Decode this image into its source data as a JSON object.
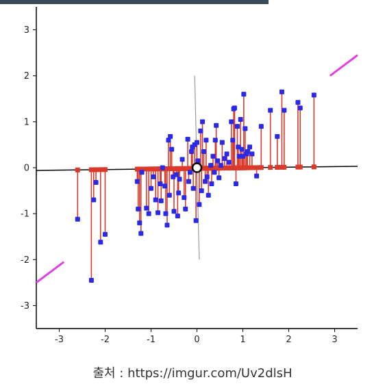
{
  "caption": "출처 : https://imgur.com/Uv2dlsH",
  "colors": {
    "background": "#ffffff",
    "frame": "#000000",
    "axis_line": "#000000",
    "projection_line": "#d93a2b",
    "projected_point": "#d93a2b",
    "data_point": "#2a2ae6",
    "direction_segment": "#e040e0",
    "orthogonal_axis": "#9a9a9a",
    "mean_marker_fill": "#ffffff",
    "mean_marker_stroke": "#000000",
    "top_strip": "#3b4a57"
  },
  "chart_data": {
    "type": "scatter",
    "title": "",
    "xlabel": "",
    "ylabel": "",
    "xlim": [
      -3.5,
      3.5
    ],
    "ylim": [
      -3.5,
      3.5
    ],
    "xticks": [
      -3,
      -2,
      -1,
      0,
      1,
      2,
      3
    ],
    "yticks": [
      -3,
      -2,
      -1,
      0,
      1,
      2,
      3
    ],
    "grid": false,
    "legend": "none",
    "mean_point": [
      0.0,
      0.0
    ],
    "direction_segments": [
      [
        [
          -3.5,
          -2.5
        ],
        [
          -2.9,
          -2.05
        ]
      ],
      [
        [
          2.9,
          2.0
        ],
        [
          3.5,
          2.45
        ]
      ]
    ],
    "orthogonal_axis": [
      [
        -0.05,
        2.0
      ],
      [
        0.05,
        -2.0
      ]
    ],
    "projection_axis": {
      "from": [
        -3.5,
        -0.06
      ],
      "to": [
        3.5,
        0.03
      ]
    },
    "points": [
      [
        -2.6,
        -1.12
      ],
      [
        -2.3,
        -2.45
      ],
      [
        -2.25,
        -0.7
      ],
      [
        -2.2,
        -0.32
      ],
      [
        -2.1,
        -1.62
      ],
      [
        -2.0,
        -1.45
      ],
      [
        -1.3,
        -0.3
      ],
      [
        -1.28,
        -0.9
      ],
      [
        -1.25,
        -1.2
      ],
      [
        -1.22,
        -1.43
      ],
      [
        -1.2,
        -0.1
      ],
      [
        -1.1,
        -0.88
      ],
      [
        -1.05,
        -1.0
      ],
      [
        -1.0,
        -0.45
      ],
      [
        -0.95,
        -0.2
      ],
      [
        -0.9,
        -0.7
      ],
      [
        -0.85,
        -0.98
      ],
      [
        -0.8,
        -0.35
      ],
      [
        -0.78,
        -0.72
      ],
      [
        -0.75,
        0.0
      ],
      [
        -0.7,
        -0.4
      ],
      [
        -0.68,
        -1.0
      ],
      [
        -0.65,
        -1.25
      ],
      [
        -0.62,
        0.6
      ],
      [
        -0.6,
        -0.6
      ],
      [
        -0.58,
        0.68
      ],
      [
        -0.55,
        0.4
      ],
      [
        -0.52,
        -0.2
      ],
      [
        -0.5,
        -0.95
      ],
      [
        -0.45,
        -0.15
      ],
      [
        -0.42,
        -1.05
      ],
      [
        -0.4,
        -0.55
      ],
      [
        -0.38,
        -0.25
      ],
      [
        -0.32,
        0.18
      ],
      [
        -0.28,
        -0.65
      ],
      [
        -0.25,
        -0.9
      ],
      [
        -0.2,
        0.62
      ],
      [
        -0.18,
        -0.3
      ],
      [
        -0.15,
        -0.1
      ],
      [
        -0.12,
        0.35
      ],
      [
        -0.1,
        0.45
      ],
      [
        -0.08,
        -0.45
      ],
      [
        -0.05,
        0.5
      ],
      [
        -0.02,
        -1.15
      ],
      [
        0.0,
        0.55
      ],
      [
        0.02,
        0.15
      ],
      [
        0.05,
        -0.8
      ],
      [
        0.08,
        0.8
      ],
      [
        0.1,
        -0.5
      ],
      [
        0.12,
        1.0
      ],
      [
        0.15,
        0.35
      ],
      [
        0.18,
        -0.3
      ],
      [
        0.2,
        0.6
      ],
      [
        0.22,
        -0.2
      ],
      [
        0.25,
        -0.6
      ],
      [
        0.3,
        0.05
      ],
      [
        0.32,
        -0.35
      ],
      [
        0.35,
        0.25
      ],
      [
        0.38,
        -0.1
      ],
      [
        0.4,
        0.6
      ],
      [
        0.42,
        0.92
      ],
      [
        0.45,
        0.15
      ],
      [
        0.48,
        -0.22
      ],
      [
        0.52,
        0.05
      ],
      [
        0.55,
        0.55
      ],
      [
        0.6,
        0.2
      ],
      [
        0.65,
        0.3
      ],
      [
        0.7,
        0.12
      ],
      [
        0.75,
        1.0
      ],
      [
        0.78,
        0.6
      ],
      [
        0.8,
        1.28
      ],
      [
        0.82,
        1.3
      ],
      [
        0.85,
        -0.35
      ],
      [
        0.88,
        0.9
      ],
      [
        0.9,
        0.45
      ],
      [
        0.92,
        0.25
      ],
      [
        0.95,
        1.05
      ],
      [
        0.98,
        0.4
      ],
      [
        1.0,
        0.25
      ],
      [
        1.02,
        1.6
      ],
      [
        1.05,
        0.85
      ],
      [
        1.08,
        0.3
      ],
      [
        1.1,
        0.35
      ],
      [
        1.15,
        0.45
      ],
      [
        1.2,
        0.3
      ],
      [
        1.3,
        -0.18
      ],
      [
        1.4,
        0.9
      ],
      [
        1.6,
        1.25
      ],
      [
        1.75,
        0.68
      ],
      [
        1.85,
        1.65
      ],
      [
        1.9,
        1.25
      ],
      [
        2.2,
        1.42
      ],
      [
        2.25,
        1.3
      ],
      [
        2.55,
        1.58
      ]
    ]
  }
}
